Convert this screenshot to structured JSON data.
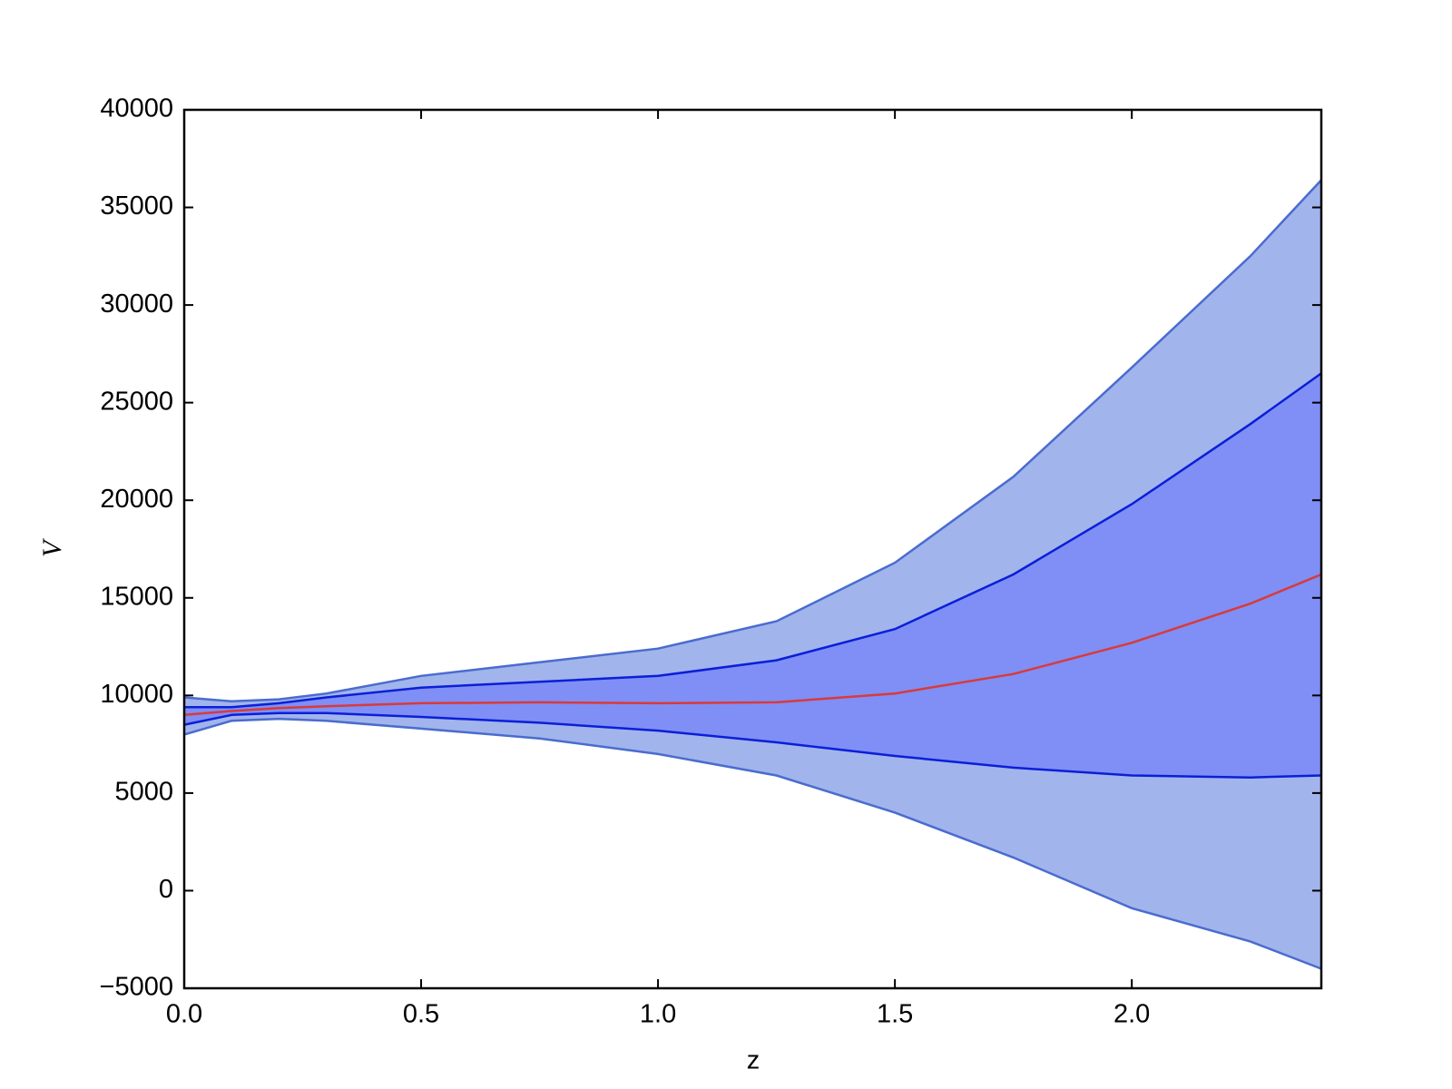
{
  "chart_data": {
    "type": "band",
    "xlabel": "z",
    "ylabel": "V",
    "x": [
      0,
      0.1,
      0.2,
      0.3,
      0.5,
      0.75,
      1.0,
      1.25,
      1.5,
      1.75,
      2.0,
      2.25,
      2.4
    ],
    "bands": [
      {
        "upper": [
          9900,
          9700,
          9800,
          10100,
          11000,
          11700,
          12400,
          13800,
          16800,
          21200,
          26800,
          32500,
          36400
        ],
        "lower": [
          8000,
          8700,
          8800,
          8700,
          8300,
          7800,
          7000,
          5900,
          4000,
          1700,
          -900,
          -2600,
          -4000
        ],
        "fill": "#a2b4ec",
        "edge": "#4a6ccf"
      },
      {
        "upper": [
          9400,
          9400,
          9600,
          9900,
          10400,
          10700,
          11000,
          11800,
          13400,
          16200,
          19800,
          23900,
          26500
        ],
        "lower": [
          8500,
          9000,
          9100,
          9100,
          8900,
          8600,
          8200,
          7600,
          6900,
          6300,
          5900,
          5800,
          5900
        ],
        "fill": "#7f8ff5",
        "edge": "#0b1fd8"
      }
    ],
    "lines": [
      {
        "values": [
          9000,
          9200,
          9350,
          9450,
          9600,
          9650,
          9600,
          9650,
          10100,
          11100,
          12700,
          14700,
          16200
        ],
        "color": "#d93a3a"
      }
    ],
    "xlim": [
      0,
      2.4
    ],
    "xticks": [
      {
        "value": 0,
        "label": "0.0"
      },
      0.5,
      {
        "value": 1,
        "label": "1.0"
      },
      1.5,
      {
        "value": 2,
        "label": "2.0"
      }
    ],
    "ylim": [
      -5000,
      40000
    ],
    "yticks": [
      {
        "value": -5000,
        "label": "−5000"
      },
      0,
      5000,
      10000,
      15000,
      20000,
      25000,
      30000,
      35000,
      40000
    ]
  }
}
